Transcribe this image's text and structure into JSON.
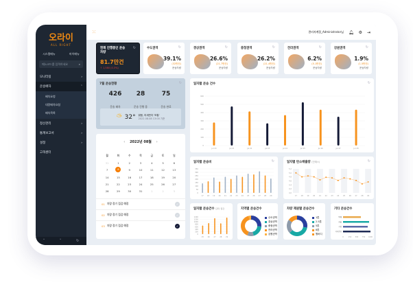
{
  "app": {
    "logo": "오라이",
    "logo_sub": "ALL RIGHT",
    "user": "관리자계정_Administrator님"
  },
  "sidebar": {
    "tab_system": "시스템메뉴",
    "tab_my": "마이메뉴",
    "search_placeholder": "메뉴코드를 입력하세요",
    "items": [
      {
        "label": "모니터링"
      },
      {
        "label": "운송배차"
      },
      {
        "label": "정산관리"
      },
      {
        "label": "통계보고서"
      },
      {
        "label": "설정"
      },
      {
        "label": "고객센터"
      }
    ],
    "sub_items": [
      {
        "label": "배차요청"
      },
      {
        "label": "대량배차요청"
      },
      {
        "label": "배차목록"
      }
    ]
  },
  "kpi": {
    "title": "현재 진행중인 운송차량",
    "value": "81.7만건",
    "change": "↑ 1,580 (0.3%)"
  },
  "regions": [
    {
      "name": "수도권역",
      "pct": "39.1%",
      "count": "(32만건)",
      "sub": "운송차량"
    },
    {
      "name": "경상권역",
      "pct": "26.6%",
      "count": "(21.7만건)",
      "sub": "운송차량"
    },
    {
      "name": "충청권역",
      "pct": "26.2%",
      "count": "(21.4만건)",
      "sub": "운송차량"
    },
    {
      "name": "전라권역",
      "pct": "6.2%",
      "count": "(5.1만건)",
      "sub": "운송차량"
    },
    {
      "name": "강원권역",
      "pct": "1.9%",
      "count": "(1.5만건)",
      "sub": "운송차량"
    }
  ],
  "monthly": {
    "title": "7월 운송현황",
    "stats": [
      {
        "value": "426",
        "label": "운송 배차"
      },
      {
        "value": "28",
        "label": "운송 진행 중"
      },
      {
        "value": "75",
        "label": "운송 완료"
      }
    ],
    "weather_temp": "32°",
    "weather_desc": "맑음, 미세먼지 '보통'",
    "weather_time": "2022.08.08 13:00 기준"
  },
  "calendar": {
    "title": "2022년 08월",
    "weekdays": [
      "월",
      "화",
      "수",
      "목",
      "금",
      "토",
      "일"
    ],
    "days": [
      "31",
      "1",
      "2",
      "3",
      "4",
      "5",
      "6",
      "7",
      "8",
      "9",
      "10",
      "11",
      "12",
      "13",
      "14",
      "15",
      "16",
      "17",
      "18",
      "19",
      "20",
      "21",
      "22",
      "23",
      "24",
      "25",
      "26",
      "27",
      "28",
      "29",
      "30",
      "31",
      "1",
      "2",
      "3"
    ],
    "selected": "8",
    "tasks": [
      {
        "no": "01",
        "label": "차량 정기 점검 예정",
        "done": false
      },
      {
        "no": "02",
        "label": "차량 정기 점검 예정",
        "done": false
      },
      {
        "no": "03",
        "label": "차량 정기 점검 예정",
        "done": true
      }
    ]
  },
  "colors": {
    "orange": "#f7931e",
    "navy": "#141a36",
    "steel": "#9fb1c6",
    "teal": "#18a9a5",
    "blue": "#2a3f9e",
    "gray": "#8e9bab"
  },
  "chart_data": [
    {
      "type": "bar",
      "title": "일자별 운송 건수",
      "categories": [
        "Jul 20",
        "Jul 21",
        "Jul 22",
        "Jul 23",
        "Jul 24",
        "Jul 25",
        "Jul 26",
        "Jul 27",
        "Jul 28"
      ],
      "values": [
        280,
        475,
        415,
        270,
        370,
        525,
        435,
        350,
        435
      ],
      "ylim": [
        0,
        600
      ],
      "yticks": [
        "0",
        "100",
        "200",
        "300",
        "400",
        "500",
        "600"
      ]
    },
    {
      "type": "bar",
      "title": "일자별 운송비",
      "categories": [
        "17",
        "18",
        "19",
        "20",
        "21",
        "22",
        "23",
        "24",
        "25",
        "26",
        "27",
        "28",
        "29"
      ],
      "values": [
        140,
        170,
        225,
        165,
        235,
        205,
        255,
        235,
        280,
        270,
        315,
        255,
        210
      ],
      "ylim": [
        0,
        350
      ],
      "yticks": [
        "0",
        "50",
        "100",
        "150",
        "200",
        "250",
        "300",
        "350"
      ]
    },
    {
      "type": "line",
      "title": "일자별 탄소배출량",
      "subtitle": "(단위:t)",
      "categories": [
        "17",
        "18",
        "19",
        "20",
        "21",
        "22",
        "23",
        "24",
        "25",
        "26",
        "27",
        "28",
        "29"
      ],
      "values": [
        5.0,
        4.8,
        4.85,
        4.8,
        4.65,
        4.78,
        4.75,
        4.62,
        4.75,
        4.7,
        4.62,
        4.45,
        4.55
      ],
      "ylim": [
        4.0,
        5.2
      ],
      "yticks": [
        "4.0",
        "4.2",
        "4.4",
        "4.6",
        "4.8",
        "5.0",
        "5.2"
      ]
    },
    {
      "type": "bar",
      "title": "일자별 운송건수",
      "subtitle": "단위: 일건",
      "categories": [
        "25",
        "26",
        "27",
        "28",
        "29"
      ],
      "values": [
        700,
        900,
        1300,
        880,
        1350
      ],
      "ylim": [
        0,
        1400
      ],
      "yticks": [
        "0",
        "200",
        "400",
        "600",
        "800",
        "1000",
        "1200",
        "1400"
      ]
    },
    {
      "type": "pie",
      "title": "지역별 운송건수",
      "labels": [
        "수도권역",
        "경상권역",
        "충청권역",
        "전라권역",
        "강원권역"
      ],
      "values": [
        26,
        20,
        10,
        40,
        4
      ]
    },
    {
      "type": "pie",
      "title": "차량 제원별 운송건수",
      "labels": [
        "1톤",
        "2.5톤",
        "5톤",
        "8톤",
        "윙바디"
      ],
      "values": [
        28,
        35,
        22,
        12,
        3
      ]
    },
    {
      "type": "bar",
      "orientation": "horizontal",
      "title": "기타 운송건수",
      "categories": [
        "택배",
        "화물",
        "기업",
        "기타운송"
      ],
      "values": [
        650,
        950,
        900,
        1050
      ],
      "xlim": [
        0,
        1000
      ],
      "xticks": [
        "0",
        "250",
        "500",
        "750",
        "1000"
      ]
    }
  ]
}
